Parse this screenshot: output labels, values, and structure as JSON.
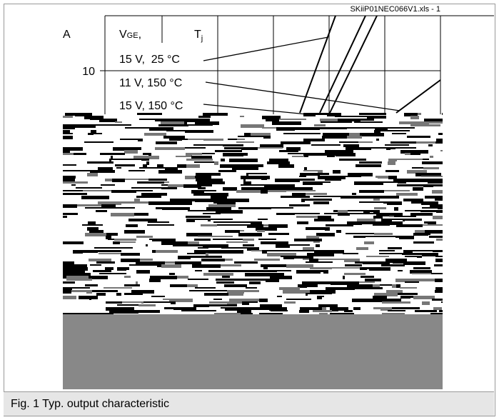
{
  "header": {
    "file_label": "SKiiP01NEC066V1.xls - 1"
  },
  "axis": {
    "unit": "A",
    "tick": "10"
  },
  "legend": {
    "vge": "V",
    "vge_sub": "GE",
    "vge_sep": ",",
    "tj": "T",
    "tj_sub": "j",
    "rows": [
      "15 V,  25 °C",
      "11 V, 150 °C",
      "15 V, 150 °C"
    ]
  },
  "caption": "Fig. 1 Typ. output characteristic"
}
